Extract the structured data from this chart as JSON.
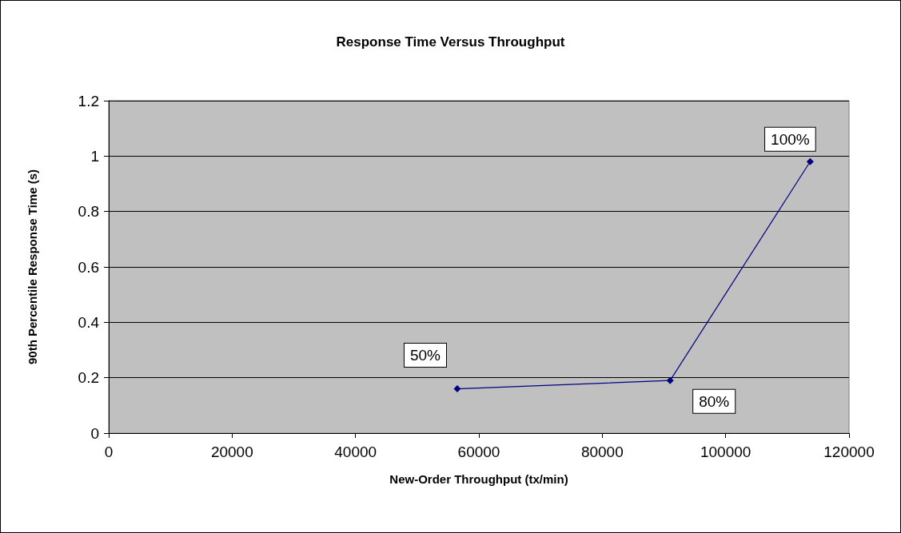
{
  "chart_data": {
    "type": "line",
    "title": "Response Time Versus Throughput",
    "xlabel": "New-Order Throughput (tx/min)",
    "ylabel": "90th Percentile Response Time (s)",
    "x": [
      56500,
      91000,
      113700
    ],
    "series": [
      {
        "color": "#000080",
        "values": [
          0.16,
          0.19,
          0.98
        ]
      }
    ],
    "xlim": [
      0,
      120000
    ],
    "xticks": [
      0,
      20000,
      40000,
      60000,
      80000,
      100000,
      120000
    ],
    "ylim": [
      0,
      1.2
    ],
    "yticks": [
      0,
      0.2,
      0.4,
      0.6,
      0.8,
      1,
      1.2
    ],
    "grid": "y",
    "marker": "diamond",
    "line_style": "solid",
    "annotations": [
      {
        "text": "50%",
        "x": 56500,
        "y": 0.16
      },
      {
        "text": "80%",
        "x": 91000,
        "y": 0.19
      },
      {
        "text": "100%",
        "x": 113700,
        "y": 0.98
      }
    ]
  }
}
